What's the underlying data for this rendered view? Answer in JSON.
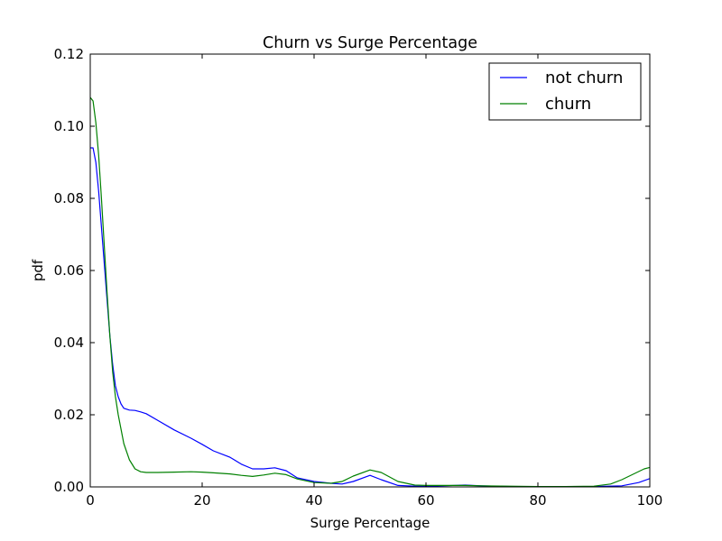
{
  "chart_data": {
    "type": "line",
    "title": "Churn vs Surge Percentage",
    "xlabel": "Surge Percentage",
    "ylabel": "pdf",
    "xlim": [
      0,
      100
    ],
    "ylim": [
      0,
      0.12
    ],
    "xticks": [
      0,
      20,
      40,
      60,
      80,
      100
    ],
    "xtick_labels": [
      "0",
      "20",
      "40",
      "60",
      "80",
      "100"
    ],
    "yticks": [
      0,
      0.02,
      0.04,
      0.06,
      0.08,
      0.1,
      0.12
    ],
    "ytick_labels": [
      "0.00",
      "0.02",
      "0.04",
      "0.06",
      "0.08",
      "0.10",
      "0.12"
    ],
    "grid": false,
    "legend_position": "top-right",
    "series": [
      {
        "name": "not churn",
        "color": "#0000ff",
        "x": [
          0,
          0.5,
          1,
          1.5,
          2,
          2.5,
          3,
          3.5,
          4,
          4.5,
          5,
          5.5,
          6,
          7,
          8,
          9,
          10,
          12,
          15,
          18,
          20,
          22,
          25,
          27,
          29,
          31,
          33,
          35,
          37,
          40,
          43,
          45,
          47,
          50,
          52,
          55,
          58,
          60,
          63,
          67,
          70,
          75,
          80,
          85,
          90,
          95,
          98,
          100
        ],
        "y": [
          0.094,
          0.094,
          0.09,
          0.082,
          0.072,
          0.062,
          0.052,
          0.042,
          0.034,
          0.028,
          0.025,
          0.023,
          0.0218,
          0.0213,
          0.0212,
          0.0208,
          0.0203,
          0.0185,
          0.0158,
          0.0135,
          0.0118,
          0.01,
          0.0082,
          0.0063,
          0.005,
          0.005,
          0.0053,
          0.0045,
          0.0025,
          0.0015,
          0.001,
          0.0008,
          0.0015,
          0.0032,
          0.002,
          0.0004,
          0.0002,
          0.0002,
          0.0003,
          0.0005,
          0.0003,
          0.0001,
          0.0001,
          0.0001,
          0.0001,
          0.0003,
          0.0012,
          0.0023
        ]
      },
      {
        "name": "churn",
        "color": "#008000",
        "x": [
          0,
          0.5,
          1,
          1.5,
          2,
          2.5,
          3,
          3.5,
          4,
          4.5,
          5,
          5.5,
          6,
          7,
          8,
          9,
          10,
          12,
          15,
          18,
          20,
          22,
          25,
          27,
          29,
          31,
          33,
          35,
          37,
          40,
          43,
          45,
          47,
          50,
          52,
          55,
          58,
          60,
          63,
          67,
          70,
          75,
          80,
          85,
          90,
          93,
          95,
          97,
          99,
          100
        ],
        "y": [
          0.108,
          0.107,
          0.101,
          0.092,
          0.08,
          0.067,
          0.054,
          0.042,
          0.032,
          0.025,
          0.02,
          0.016,
          0.012,
          0.0075,
          0.005,
          0.0042,
          0.004,
          0.004,
          0.0041,
          0.0042,
          0.0041,
          0.0039,
          0.0036,
          0.0032,
          0.0029,
          0.0033,
          0.0038,
          0.0034,
          0.0022,
          0.0012,
          0.001,
          0.0015,
          0.003,
          0.0047,
          0.004,
          0.0015,
          0.0005,
          0.0004,
          0.0004,
          0.0004,
          0.0003,
          0.0002,
          0.0001,
          0.0001,
          0.0002,
          0.0008,
          0.002,
          0.0035,
          0.005,
          0.0054
        ]
      }
    ]
  }
}
